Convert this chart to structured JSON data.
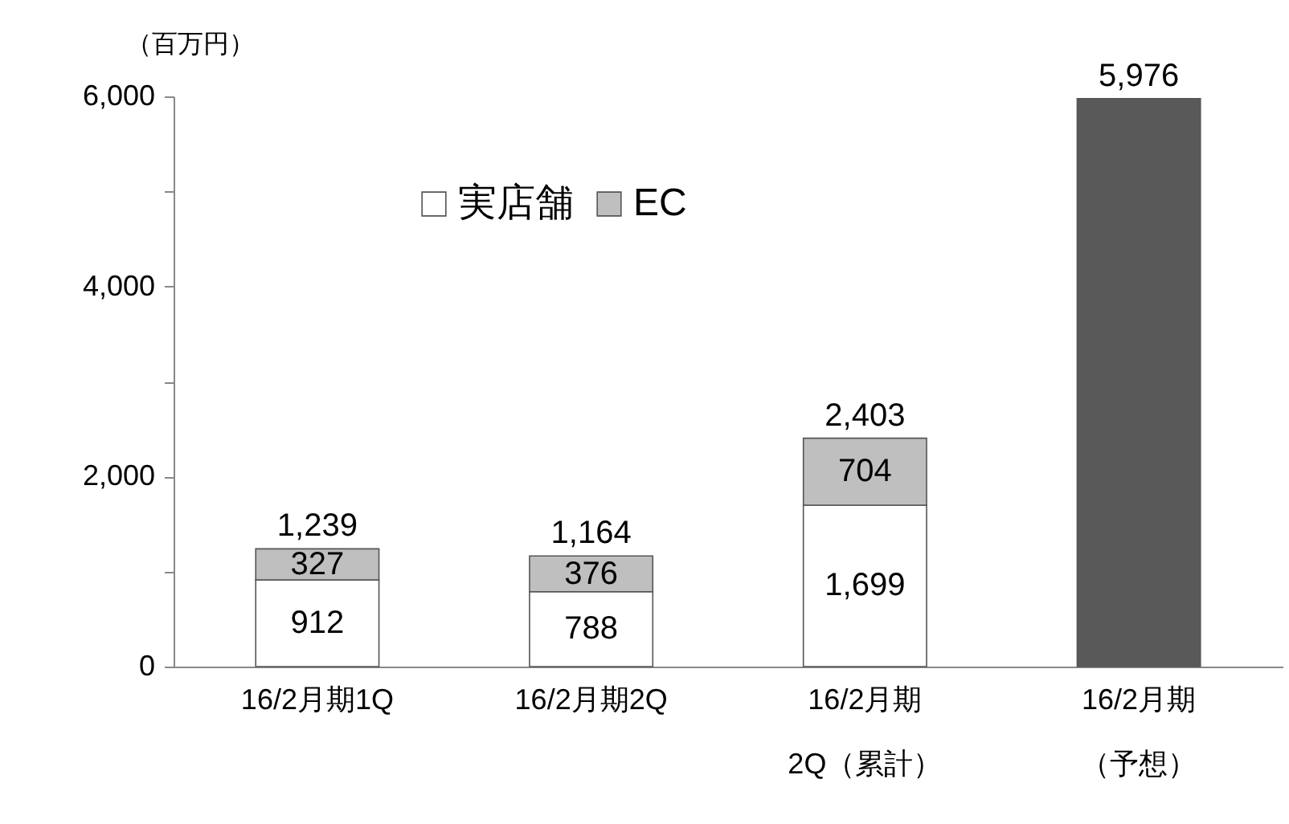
{
  "chart_data": {
    "type": "bar",
    "stacked": true,
    "ylabel": "（百万円）",
    "categories": [
      "16/2月期1Q",
      "16/2月期2Q",
      "16/2月期2Q（累計）",
      "16/2月期（予想）"
    ],
    "series": [
      {
        "name": "実店舗",
        "color": "#ffffff",
        "values": [
          912,
          788,
          1699,
          null
        ],
        "value_labels": [
          "912",
          "788",
          "1,699",
          null
        ]
      },
      {
        "name": "EC",
        "color": "#bfbfbf",
        "values": [
          327,
          376,
          704,
          null
        ],
        "value_labels": [
          "327",
          "376",
          "704",
          null
        ]
      },
      {
        "color": "#595959",
        "values": [
          null,
          null,
          null,
          5976
        ]
      }
    ],
    "totals": [
      "1,239",
      "1,164",
      "2,403",
      "5,976"
    ],
    "ylim": [
      0,
      6000
    ],
    "yticks": [
      0,
      {
        "value": 1000,
        "label": null
      },
      {
        "value": 2000,
        "label": "2,000"
      },
      {
        "value": 3000,
        "label": null
      },
      {
        "value": 4000,
        "label": "4,000"
      },
      {
        "value": 5000,
        "label": null
      },
      {
        "value": 6000,
        "label": "6,000"
      }
    ],
    "grid": false,
    "legend": "top"
  }
}
